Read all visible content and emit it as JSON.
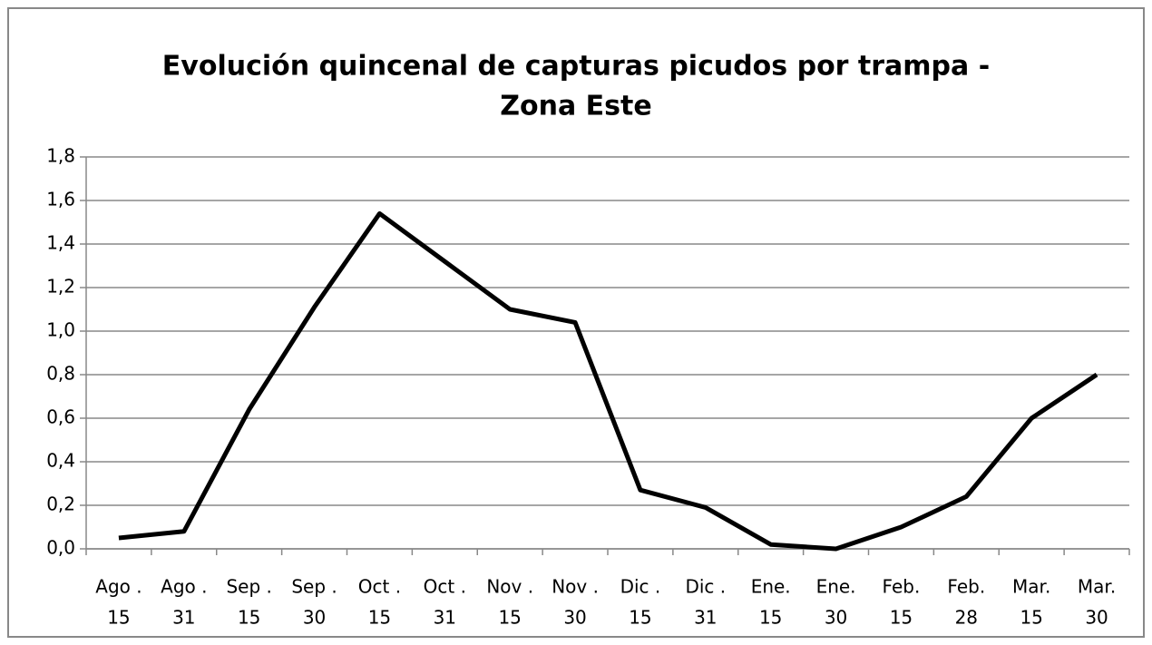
{
  "chart_data": {
    "type": "line",
    "title": [
      "Evolución quincenal de capturas picudos por trampa -",
      "Zona Este"
    ],
    "categories": [
      [
        "Ago .",
        "15"
      ],
      [
        "Ago .",
        "31"
      ],
      [
        "Sep .",
        "15"
      ],
      [
        "Sep .",
        "30"
      ],
      [
        "Oct .",
        "15"
      ],
      [
        "Oct .",
        "31"
      ],
      [
        "Nov .",
        "15"
      ],
      [
        "Nov .",
        "30"
      ],
      [
        "Dic .",
        "15"
      ],
      [
        "Dic .",
        "31"
      ],
      [
        "Ene.",
        "15"
      ],
      [
        "Ene.",
        "30"
      ],
      [
        "Feb.",
        "15"
      ],
      [
        "Feb.",
        "28"
      ],
      [
        "Mar.",
        "15"
      ],
      [
        "Mar.",
        "30"
      ]
    ],
    "values": [
      0.05,
      0.08,
      0.64,
      1.11,
      1.54,
      1.32,
      1.1,
      1.04,
      0.27,
      0.19,
      0.02,
      0.0,
      0.1,
      0.24,
      0.6,
      0.8
    ],
    "color": "#000000",
    "ylim": [
      0,
      1.8
    ],
    "yticks": [
      {
        "value": 0,
        "label": "0,0"
      },
      {
        "value": 0.2,
        "label": "0,2"
      },
      {
        "value": 0.4,
        "label": "0,4"
      },
      {
        "value": 0.6,
        "label": "0,6"
      },
      {
        "value": 0.8,
        "label": "0,8"
      },
      {
        "value": 1.0,
        "label": "1,0"
      },
      {
        "value": 1.2,
        "label": "1,2"
      },
      {
        "value": 1.4,
        "label": "1,4"
      },
      {
        "value": 1.6,
        "label": "1,6"
      },
      {
        "value": 1.8,
        "label": "1,8"
      }
    ],
    "grid": true
  }
}
